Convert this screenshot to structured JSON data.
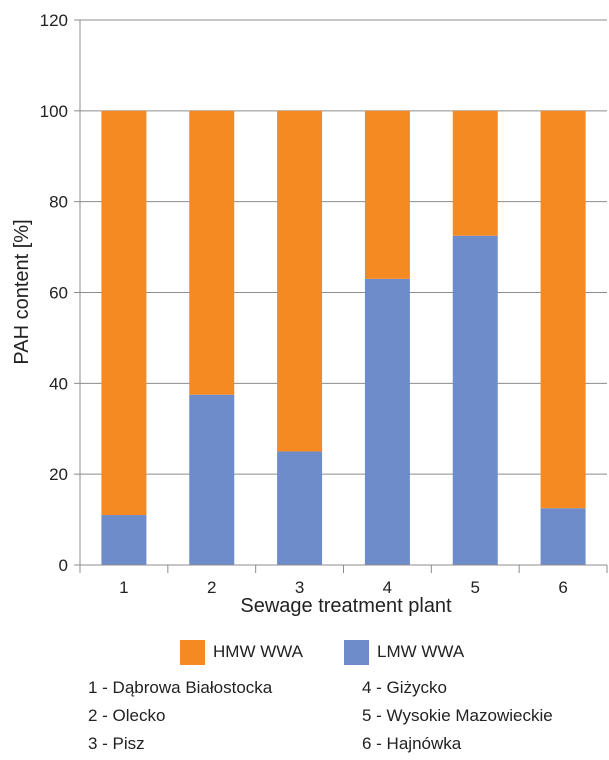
{
  "chart_data": {
    "type": "bar",
    "stacked": true,
    "xlabel": "Sewage treatment plant",
    "ylabel": "PAH content [%]",
    "ylim": [
      0,
      120
    ],
    "yticks": [
      0,
      20,
      40,
      60,
      80,
      100,
      120
    ],
    "categories": [
      "1",
      "2",
      "3",
      "4",
      "5",
      "6"
    ],
    "grid": true,
    "series": [
      {
        "name": "LMW WWA",
        "color": "#6f8cca",
        "values": [
          11,
          37.5,
          25,
          63,
          72.5,
          12.5
        ]
      },
      {
        "name": "HMW WWA",
        "color": "#f58a23",
        "values": [
          89,
          62.5,
          75,
          37,
          27.5,
          87.5
        ]
      }
    ],
    "legend": [
      {
        "name": "HMW WWA",
        "color": "#f58a23"
      },
      {
        "name": "LMW WWA",
        "color": "#6f8cca"
      }
    ],
    "legend_position": "bottom",
    "annotations": [
      "1 - Dąbrowa Białostocka",
      "2 - Olecko",
      "3 - Pisz",
      "4 - Giżycko",
      "5 - Wysokie Mazowieckie",
      "6 - Hajnówka"
    ]
  }
}
